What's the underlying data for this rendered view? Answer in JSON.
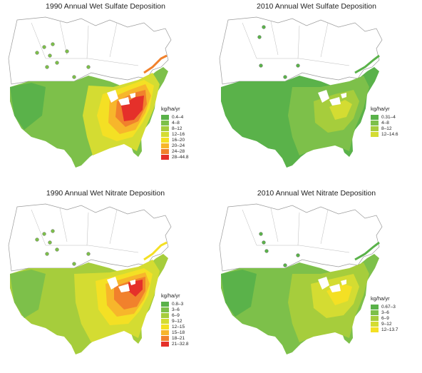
{
  "panels": [
    {
      "title": "1990 Annual Wet Sulfate Deposition",
      "legend_unit": "kg/ha/yr",
      "legend": [
        {
          "label": "0.4–4",
          "color": "#5ab24a"
        },
        {
          "label": "4–8",
          "color": "#7dc04a"
        },
        {
          "label": "8–12",
          "color": "#a6cd3c"
        },
        {
          "label": "12–16",
          "color": "#d4dc32"
        },
        {
          "label": "16–20",
          "color": "#f4e024"
        },
        {
          "label": "20–24",
          "color": "#f7b62b"
        },
        {
          "label": "24–28",
          "color": "#f1812c"
        },
        {
          "label": "28–44.8",
          "color": "#e5302a"
        }
      ]
    },
    {
      "title": "2010 Annual Wet Sulfate Deposition",
      "legend_unit": "kg/ha/yr",
      "legend": [
        {
          "label": "0.31–4",
          "color": "#5ab24a"
        },
        {
          "label": "4–8",
          "color": "#7dc04a"
        },
        {
          "label": "8–12",
          "color": "#a6cd3c"
        },
        {
          "label": "12–14.6",
          "color": "#d4dc32"
        }
      ]
    },
    {
      "title": "1990 Annual Wet Nitrate Deposition",
      "legend_unit": "kg/ha/yr",
      "legend": [
        {
          "label": "0.8–3",
          "color": "#5ab24a"
        },
        {
          "label": "3–6",
          "color": "#7dc04a"
        },
        {
          "label": "6–9",
          "color": "#a6cd3c"
        },
        {
          "label": "9–12",
          "color": "#d4dc32"
        },
        {
          "label": "12–15",
          "color": "#f4e024"
        },
        {
          "label": "15–18",
          "color": "#f7b62b"
        },
        {
          "label": "18–21",
          "color": "#f1812c"
        },
        {
          "label": "21–32.8",
          "color": "#e5302a"
        }
      ]
    },
    {
      "title": "2010 Annual Wet Nitrate Deposition",
      "legend_unit": "kg/ha/yr",
      "legend": [
        {
          "label": "0.67–3",
          "color": "#5ab24a"
        },
        {
          "label": "3–6",
          "color": "#7dc04a"
        },
        {
          "label": "6–9",
          "color": "#a6cd3c"
        },
        {
          "label": "9–12",
          "color": "#d4dc32"
        },
        {
          "label": "12–13.7",
          "color": "#f4e024"
        }
      ]
    }
  ]
}
